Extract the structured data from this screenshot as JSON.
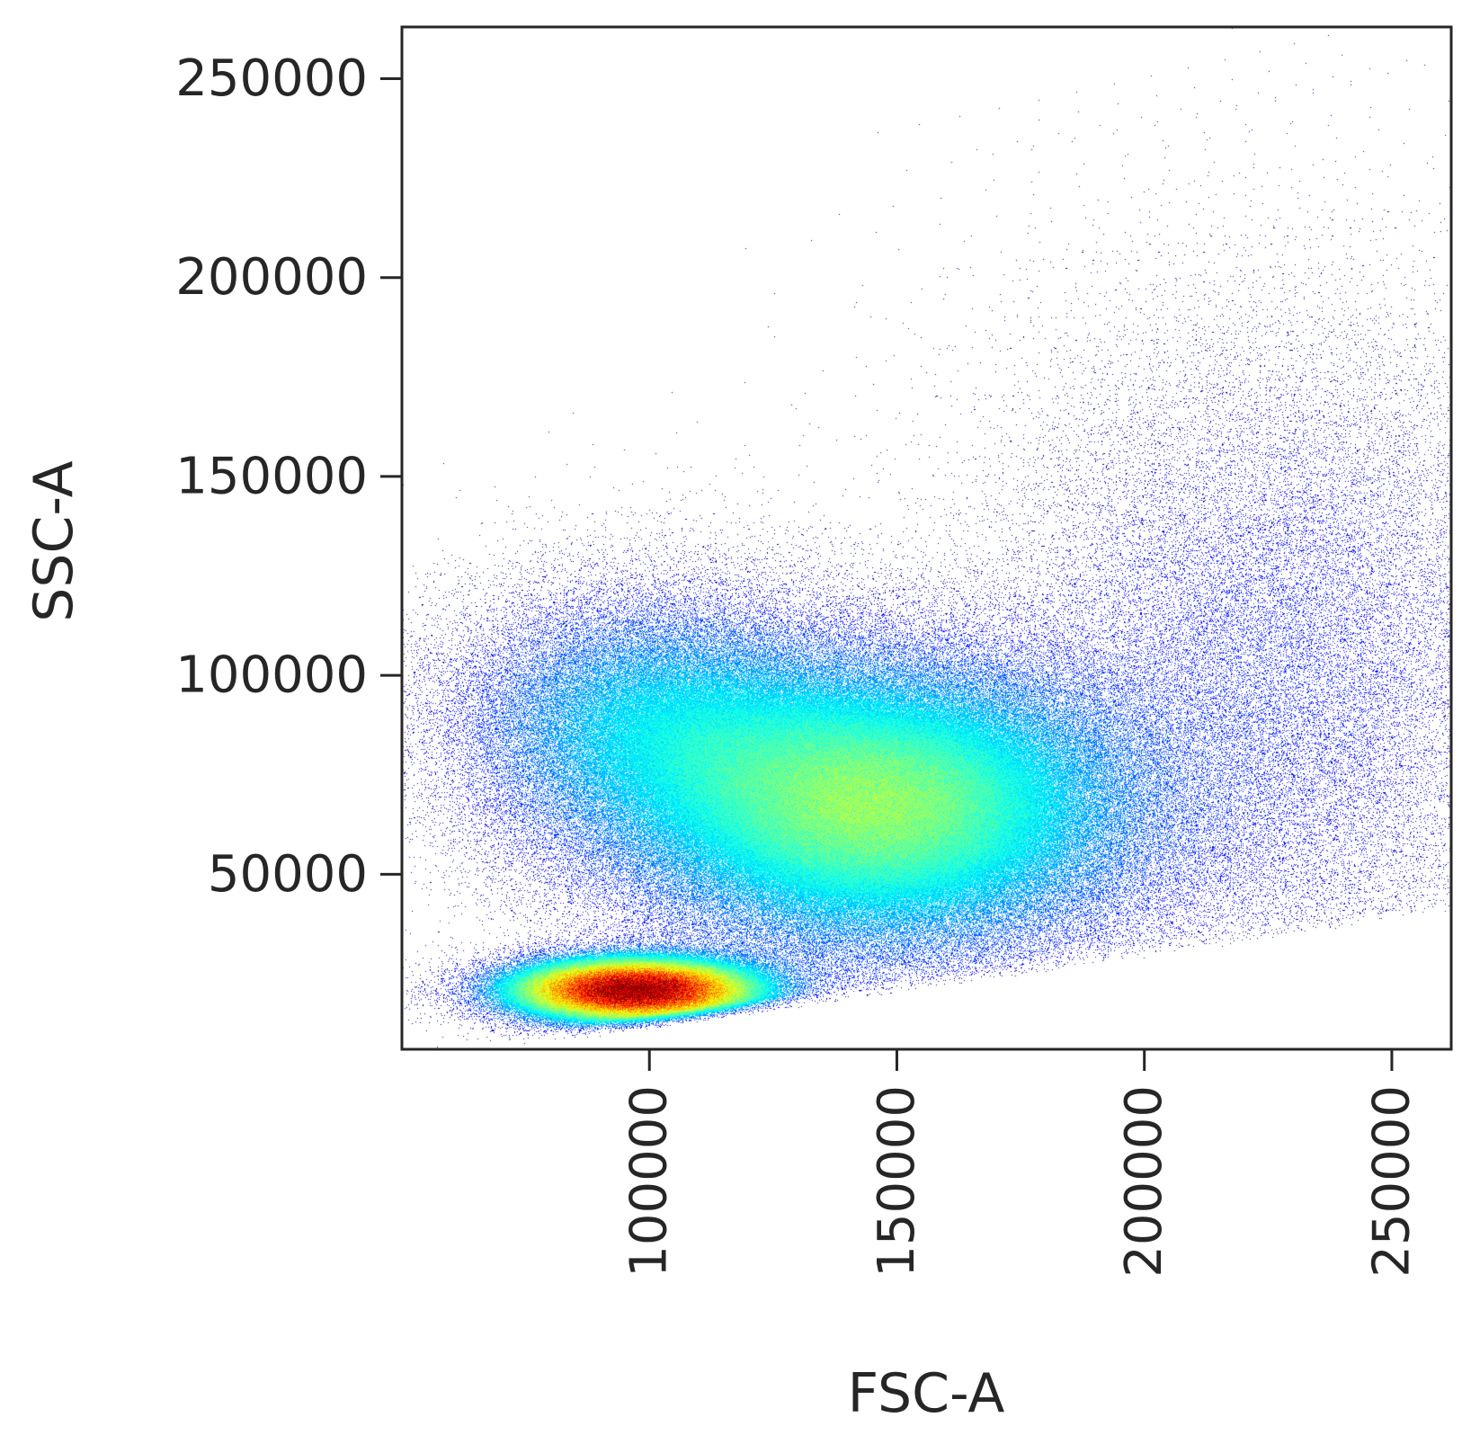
{
  "chart_data": {
    "type": "heatmap",
    "subtype": "flow-cytometry density scatter",
    "title": "",
    "xlabel": "FSC-A",
    "ylabel": "SSC-A",
    "xlim": [
      50000,
      262000
    ],
    "ylim": [
      6000,
      263000
    ],
    "x_ticks": [
      100000,
      150000,
      200000,
      250000
    ],
    "x_tick_labels": [
      "100000",
      "150000",
      "200000",
      "250000"
    ],
    "x_tick_label_rotation": "vertical",
    "y_ticks": [
      50000,
      100000,
      150000,
      200000,
      250000
    ],
    "y_tick_labels": [
      "50000",
      "100000",
      "150000",
      "200000",
      "250000"
    ],
    "grid": false,
    "legend": "none",
    "colormap": "jet",
    "colormap_stops": [
      "#00007f",
      "#0000ff",
      "#007fff",
      "#00ffff",
      "#7fff7f",
      "#ffff00",
      "#ff7f00",
      "#ff0000",
      "#7f0000"
    ],
    "populations": [
      {
        "name": "dense lower cluster",
        "center": [
          97000,
          21000
        ],
        "spread": [
          14000,
          4500
        ],
        "relative_density": 1.0
      },
      {
        "name": "broad central cluster",
        "center": [
          146000,
          67000
        ],
        "spread": [
          28000,
          20000
        ],
        "relative_density": 0.3
      },
      {
        "name": "upper-left diffuse band",
        "center": [
          100000,
          88000
        ],
        "spread": [
          22000,
          18000
        ],
        "relative_density": 0.12
      },
      {
        "name": "high-FSC diffuse tail",
        "center": [
          225000,
          100000
        ],
        "spread": [
          30000,
          45000
        ],
        "relative_density": 0.03
      }
    ]
  }
}
